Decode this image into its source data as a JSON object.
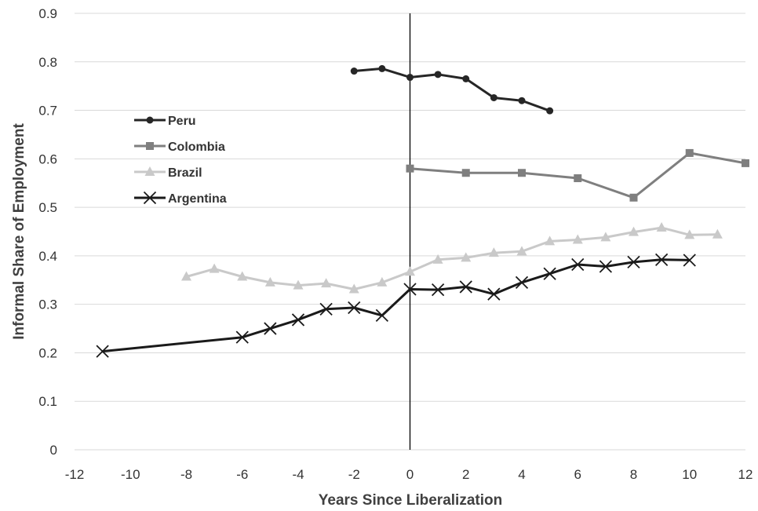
{
  "chart_data": {
    "type": "line",
    "xlabel": "Years Since Liberalization",
    "ylabel": "Informal Share of Employment",
    "xlim": [
      -12,
      12
    ],
    "ylim": [
      0,
      0.9
    ],
    "x_ticks": [
      "-12",
      "-10",
      "-8",
      "-6",
      "-4",
      "-2",
      "0",
      "2",
      "4",
      "6",
      "8",
      "10",
      "12"
    ],
    "y_ticks": [
      "0",
      "0.1",
      "0.2",
      "0.3",
      "0.4",
      "0.5",
      "0.6",
      "0.7",
      "0.8",
      "0.9"
    ],
    "grid": "horizontal",
    "reference_line_x": 0,
    "legend_position": "left",
    "series": [
      {
        "name": "Peru",
        "marker": "circle",
        "color": "#262626",
        "x": [
          -2,
          -1,
          0,
          1,
          2,
          3,
          4,
          5
        ],
        "y": [
          0.781,
          0.786,
          0.768,
          0.774,
          0.765,
          0.726,
          0.72,
          0.699
        ]
      },
      {
        "name": "Colombia",
        "marker": "square",
        "color": "#7f7f7f",
        "x": [
          0,
          2,
          4,
          6,
          8,
          10,
          12
        ],
        "y": [
          0.58,
          0.571,
          0.571,
          0.56,
          0.52,
          0.612,
          0.591
        ]
      },
      {
        "name": "Brazil",
        "marker": "triangle",
        "color": "#c9c9c9",
        "x": [
          -8,
          -7,
          -6,
          -5,
          -4,
          -3,
          -2,
          -1,
          0,
          1,
          2,
          3,
          4,
          5,
          6,
          7,
          8,
          9,
          10,
          11
        ],
        "y": [
          0.357,
          0.373,
          0.357,
          0.345,
          0.339,
          0.343,
          0.331,
          0.345,
          0.367,
          0.392,
          0.396,
          0.406,
          0.409,
          0.43,
          0.433,
          0.438,
          0.449,
          0.458,
          0.443,
          0.444
        ]
      },
      {
        "name": "Argentina",
        "marker": "x",
        "color": "#1a1a1a",
        "x": [
          -11,
          -6,
          -5,
          -4,
          -3,
          -2,
          -1,
          0,
          1,
          2,
          3,
          4,
          5,
          6,
          7,
          8,
          9,
          10
        ],
        "y": [
          0.203,
          0.232,
          0.25,
          0.268,
          0.29,
          0.293,
          0.277,
          0.331,
          0.33,
          0.336,
          0.321,
          0.345,
          0.363,
          0.382,
          0.378,
          0.387,
          0.392,
          0.391
        ]
      }
    ]
  }
}
